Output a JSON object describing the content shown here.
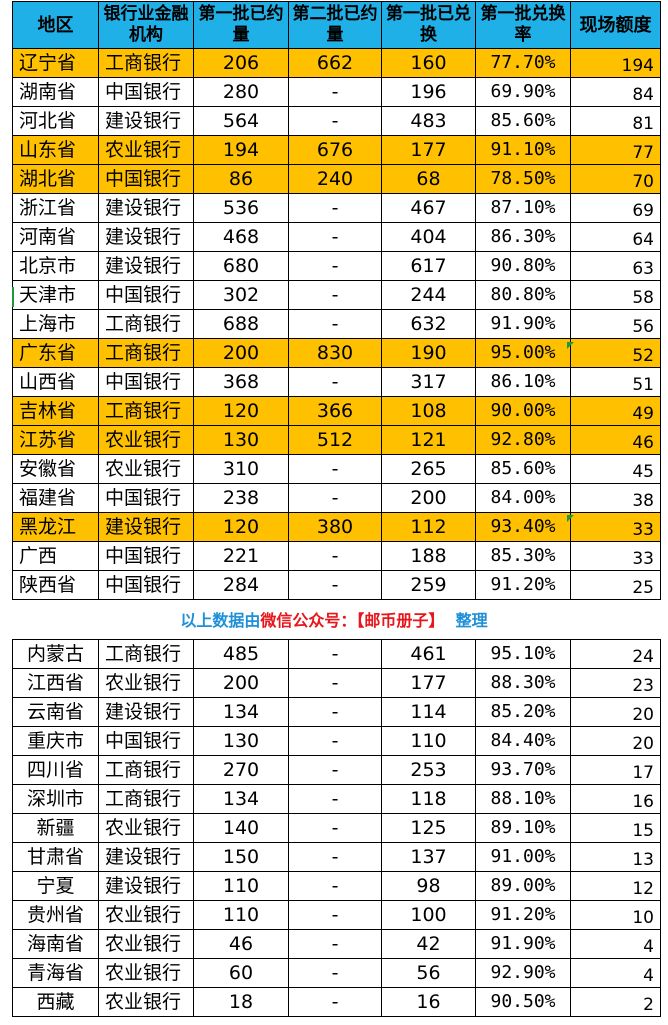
{
  "headers": [
    "地区",
    "银行业金融机构",
    "第一批已约量",
    "第二批已约量",
    "第一批已兑换",
    "第一批兑换率",
    "现场额度"
  ],
  "banner": {
    "prefix": "以上数据由",
    "source": "微信公众号：",
    "name": "【邮币册子】",
    "suffix": "整理"
  },
  "colors": {
    "header": "#1fb0e8",
    "highlight": "#ffc000",
    "banner_blue": "#1e90d8",
    "banner_red": "#e8151b"
  },
  "table1_rows": [
    {
      "region": "辽宁省",
      "bank": "工商银行",
      "batch1": "206",
      "batch2": "662",
      "redeemed": "160",
      "rate": "77.70%",
      "quota": "194",
      "highlight": true
    },
    {
      "region": "湖南省",
      "bank": "中国银行",
      "batch1": "280",
      "batch2": "-",
      "redeemed": "196",
      "rate": "69.90%",
      "quota": "84",
      "highlight": false
    },
    {
      "region": "河北省",
      "bank": "建设银行",
      "batch1": "564",
      "batch2": "-",
      "redeemed": "483",
      "rate": "85.60%",
      "quota": "81",
      "highlight": false
    },
    {
      "region": "山东省",
      "bank": "农业银行",
      "batch1": "194",
      "batch2": "676",
      "redeemed": "177",
      "rate": "91.10%",
      "quota": "77",
      "highlight": true
    },
    {
      "region": "湖北省",
      "bank": "中国银行",
      "batch1": "86",
      "batch2": "240",
      "redeemed": "68",
      "rate": "78.50%",
      "quota": "70",
      "highlight": true
    },
    {
      "region": "浙江省",
      "bank": "建设银行",
      "batch1": "536",
      "batch2": "-",
      "redeemed": "467",
      "rate": "87.10%",
      "quota": "69",
      "highlight": false
    },
    {
      "region": "河南省",
      "bank": "建设银行",
      "batch1": "468",
      "batch2": "-",
      "redeemed": "404",
      "rate": "86.30%",
      "quota": "64",
      "highlight": false
    },
    {
      "region": "北京市",
      "bank": "建设银行",
      "batch1": "680",
      "batch2": "-",
      "redeemed": "617",
      "rate": "90.80%",
      "quota": "63",
      "highlight": false
    },
    {
      "region": "天津市",
      "bank": "中国银行",
      "batch1": "302",
      "batch2": "-",
      "redeemed": "244",
      "rate": "80.80%",
      "quota": "58",
      "highlight": false
    },
    {
      "region": "上海市",
      "bank": "工商银行",
      "batch1": "688",
      "batch2": "-",
      "redeemed": "632",
      "rate": "91.90%",
      "quota": "56",
      "highlight": false
    },
    {
      "region": "广东省",
      "bank": "工商银行",
      "batch1": "200",
      "batch2": "830",
      "redeemed": "190",
      "rate": "95.00%",
      "quota": "52",
      "highlight": true
    },
    {
      "region": "山西省",
      "bank": "中国银行",
      "batch1": "368",
      "batch2": "-",
      "redeemed": "317",
      "rate": "86.10%",
      "quota": "51",
      "highlight": false
    },
    {
      "region": "吉林省",
      "bank": "工商银行",
      "batch1": "120",
      "batch2": "366",
      "redeemed": "108",
      "rate": "90.00%",
      "quota": "49",
      "highlight": true
    },
    {
      "region": "江苏省",
      "bank": "农业银行",
      "batch1": "130",
      "batch2": "512",
      "redeemed": "121",
      "rate": "92.80%",
      "quota": "46",
      "highlight": true
    },
    {
      "region": "安徽省",
      "bank": "农业银行",
      "batch1": "310",
      "batch2": "-",
      "redeemed": "265",
      "rate": "85.60%",
      "quota": "45",
      "highlight": false
    },
    {
      "region": "福建省",
      "bank": "中国银行",
      "batch1": "238",
      "batch2": "-",
      "redeemed": "200",
      "rate": "84.00%",
      "quota": "38",
      "highlight": false
    },
    {
      "region": "黑龙江",
      "bank": "建设银行",
      "batch1": "120",
      "batch2": "380",
      "redeemed": "112",
      "rate": "93.40%",
      "quota": "33",
      "highlight": true
    },
    {
      "region": "广西",
      "bank": "中国银行",
      "batch1": "221",
      "batch2": "-",
      "redeemed": "188",
      "rate": "85.30%",
      "quota": "33",
      "highlight": false
    },
    {
      "region": "陕西省",
      "bank": "中国银行",
      "batch1": "284",
      "batch2": "-",
      "redeemed": "259",
      "rate": "91.20%",
      "quota": "25",
      "highlight": false
    }
  ],
  "table2_rows": [
    {
      "region": "内蒙古",
      "bank": "工商银行",
      "batch1": "485",
      "batch2": "-",
      "redeemed": "461",
      "rate": "95.10%",
      "quota": "24",
      "highlight": false
    },
    {
      "region": "江西省",
      "bank": "农业银行",
      "batch1": "200",
      "batch2": "-",
      "redeemed": "177",
      "rate": "88.30%",
      "quota": "23",
      "highlight": false
    },
    {
      "region": "云南省",
      "bank": "建设银行",
      "batch1": "134",
      "batch2": "-",
      "redeemed": "114",
      "rate": "85.20%",
      "quota": "20",
      "highlight": false
    },
    {
      "region": "重庆市",
      "bank": "中国银行",
      "batch1": "130",
      "batch2": "-",
      "redeemed": "110",
      "rate": "84.40%",
      "quota": "20",
      "highlight": false
    },
    {
      "region": "四川省",
      "bank": "工商银行",
      "batch1": "270",
      "batch2": "-",
      "redeemed": "253",
      "rate": "93.70%",
      "quota": "17",
      "highlight": false
    },
    {
      "region": "深圳市",
      "bank": "工商银行",
      "batch1": "134",
      "batch2": "-",
      "redeemed": "118",
      "rate": "88.10%",
      "quota": "16",
      "highlight": false
    },
    {
      "region": "新疆",
      "bank": "农业银行",
      "batch1": "140",
      "batch2": "-",
      "redeemed": "125",
      "rate": "89.10%",
      "quota": "15",
      "highlight": false
    },
    {
      "region": "甘肃省",
      "bank": "建设银行",
      "batch1": "150",
      "batch2": "-",
      "redeemed": "137",
      "rate": "91.00%",
      "quota": "13",
      "highlight": false
    },
    {
      "region": "宁夏",
      "bank": "建设银行",
      "batch1": "110",
      "batch2": "-",
      "redeemed": "98",
      "rate": "89.00%",
      "quota": "12",
      "highlight": false
    },
    {
      "region": "贵州省",
      "bank": "农业银行",
      "batch1": "110",
      "batch2": "-",
      "redeemed": "100",
      "rate": "91.20%",
      "quota": "10",
      "highlight": false
    },
    {
      "region": "海南省",
      "bank": "农业银行",
      "batch1": "46",
      "batch2": "-",
      "redeemed": "42",
      "rate": "91.90%",
      "quota": "4",
      "highlight": false
    },
    {
      "region": "青海省",
      "bank": "农业银行",
      "batch1": "60",
      "batch2": "-",
      "redeemed": "56",
      "rate": "92.90%",
      "quota": "4",
      "highlight": false
    },
    {
      "region": "西藏",
      "bank": "农业银行",
      "batch1": "18",
      "batch2": "-",
      "redeemed": "16",
      "rate": "90.50%",
      "quota": "2",
      "highlight": false
    }
  ]
}
